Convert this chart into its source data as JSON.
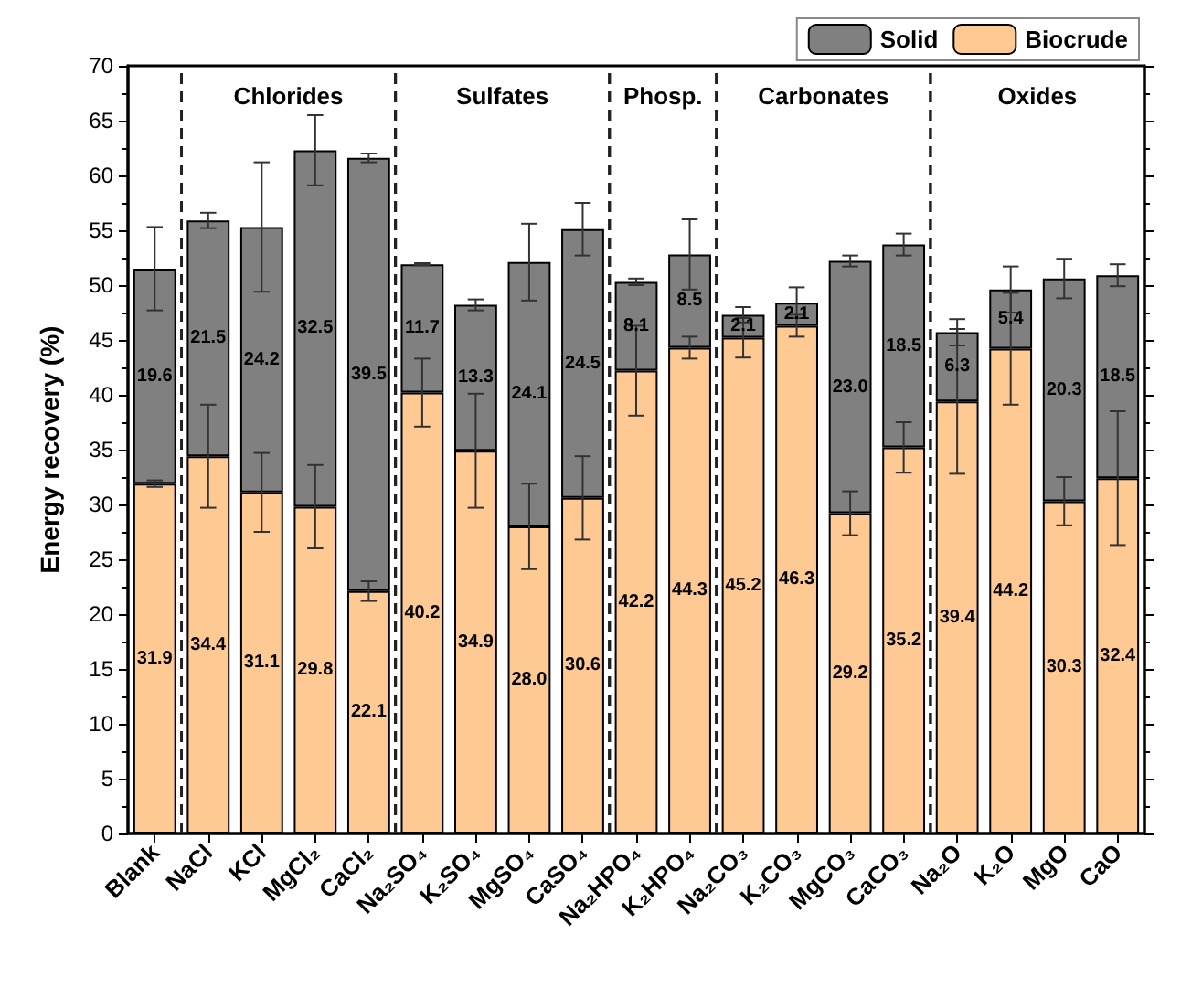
{
  "chart_data": {
    "type": "bar",
    "stacked": true,
    "ylabel": "Energy recovery (%)",
    "categories": [
      "Blank",
      "NaCl",
      "KCl",
      "MgCl₂",
      "CaCl₂",
      "Na₂SO₄",
      "K₂SO₄",
      "MgSO₄",
      "CaSO₄",
      "Na₂HPO₄",
      "K₂HPO₄",
      "Na₂CO₃",
      "K₂CO₃",
      "MgCO₃",
      "CaCO₃",
      "Na₂O",
      "K₂O",
      "MgO",
      "CaO"
    ],
    "series": [
      {
        "name": "Biocrude",
        "color": "#ffc994",
        "values": [
          31.9,
          34.4,
          31.1,
          29.8,
          22.1,
          40.2,
          34.9,
          28.0,
          30.6,
          42.2,
          44.3,
          45.2,
          46.3,
          29.2,
          35.2,
          39.4,
          44.2,
          30.3,
          32.4
        ],
        "value_labels": [
          "31.9",
          "34.4",
          "31.1",
          "29.8",
          "22.1",
          "40.2",
          "34.9",
          "28.0",
          "30.6",
          "42.2",
          "44.3",
          "45.2",
          "46.3",
          "29.2",
          "35.2",
          "39.4",
          "44.2",
          "30.3",
          "32.4"
        ],
        "errors": [
          0.3,
          4.7,
          3.6,
          3.8,
          0.9,
          3.1,
          5.2,
          3.9,
          3.8,
          4.1,
          1.0,
          1.8,
          1.0,
          2.0,
          2.3,
          6.6,
          5.1,
          2.2,
          6.1
        ]
      },
      {
        "name": "Solid",
        "color": "#808080",
        "values": [
          19.6,
          21.5,
          24.2,
          32.5,
          39.5,
          11.7,
          13.3,
          24.1,
          24.5,
          8.1,
          8.5,
          2.1,
          2.1,
          23.0,
          18.5,
          6.3,
          5.4,
          20.3,
          18.5
        ],
        "value_labels": [
          "19.6",
          "21.5",
          "24.2",
          "32.5",
          "39.5",
          "11.7",
          "13.3",
          "24.1",
          "24.5",
          "8.1",
          "8.5",
          "2.1",
          "2.1",
          "23.0",
          "18.5",
          "6.3",
          "5.4",
          "20.3",
          "18.5"
        ],
        "errors": [
          3.8,
          0.7,
          5.9,
          3.2,
          0.4,
          0.1,
          0.5,
          3.5,
          2.4,
          0.3,
          3.2,
          0.7,
          1.4,
          0.5,
          1.0,
          1.2,
          2.1,
          1.8,
          1.0
        ]
      }
    ],
    "ylim": [
      0,
      70
    ],
    "yticks": [
      0,
      5,
      10,
      15,
      20,
      25,
      30,
      35,
      40,
      45,
      50,
      55,
      60,
      65,
      70
    ],
    "annotations": [
      "Chlorides",
      "Sulfates",
      "Phosp.",
      "Carbonates",
      "Oxides"
    ],
    "legend": "top right",
    "grid": false
  }
}
